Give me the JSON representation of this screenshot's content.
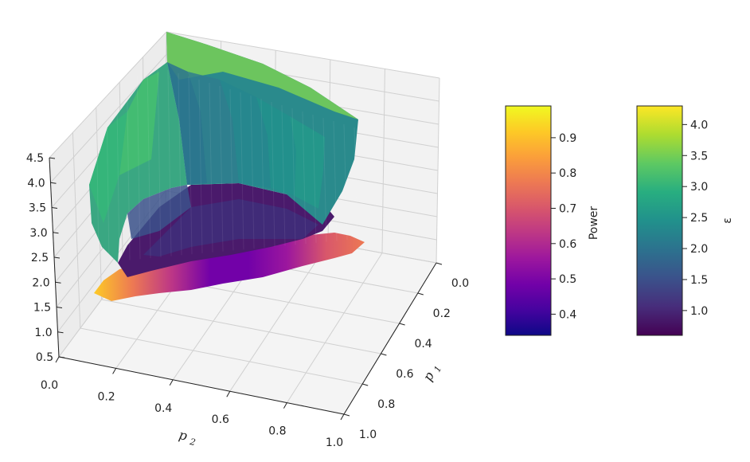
{
  "chart_data": {
    "type": "surface3d",
    "title": "",
    "x_axis": {
      "label": "p2",
      "label_sub": "2",
      "range": [
        0,
        1
      ],
      "ticks": [
        "0.0",
        "0.2",
        "0.4",
        "0.6",
        "0.8",
        "1.0"
      ]
    },
    "y_axis": {
      "label": "p1",
      "label_sub": "1",
      "range": [
        0,
        1
      ],
      "ticks": [
        "0.0",
        "0.2",
        "0.4",
        "0.6",
        "0.8",
        "1.0"
      ]
    },
    "z_axis": {
      "label": "",
      "range": [
        0.5,
        4.5
      ],
      "ticks": [
        "0.5",
        "1.0",
        "1.5",
        "2.0",
        "2.5",
        "3.0",
        "3.5",
        "4.0",
        "4.5"
      ]
    },
    "surfaces": [
      {
        "name": "ε",
        "colormap": "viridis",
        "description_range": [
          0.6,
          4.3
        ]
      },
      {
        "name": "Power",
        "colormap": "plasma",
        "description_range": [
          0.34,
          0.99
        ]
      }
    ],
    "colorbars": [
      {
        "label": "Power",
        "colormap": "plasma",
        "range": [
          0.34,
          0.99
        ],
        "ticks": [
          "0.4",
          "0.5",
          "0.6",
          "0.7",
          "0.8",
          "0.9"
        ]
      },
      {
        "label": "ε",
        "colormap": "viridis",
        "range": [
          0.6,
          4.3
        ],
        "ticks": [
          "1.0",
          "1.5",
          "2.0",
          "2.5",
          "3.0",
          "3.5",
          "4.0"
        ]
      }
    ]
  },
  "colors": {
    "pane": "#f2f2f2",
    "grid": "#d0d0d0",
    "axis": "#222222",
    "viridis": [
      "#440154",
      "#472d7b",
      "#3b528b",
      "#2c728e",
      "#21918c",
      "#28ae80",
      "#5ec962",
      "#addc30",
      "#fde725"
    ],
    "plasma": [
      "#0d0887",
      "#46039f",
      "#7201a8",
      "#9c179e",
      "#bd3786",
      "#d8576b",
      "#ed7953",
      "#fb9f3a",
      "#fdca26",
      "#f0f921"
    ]
  }
}
